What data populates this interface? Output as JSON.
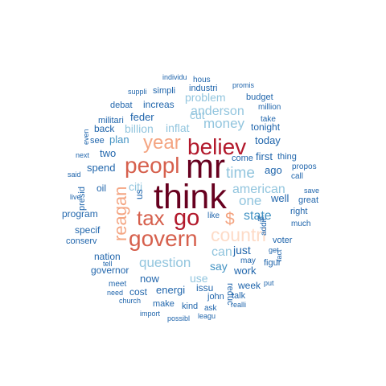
{
  "palette": {
    "darkest_red": "#67001f",
    "dark_red": "#b2182b",
    "red": "#d6604d",
    "salmon": "#f4a582",
    "peach": "#fddbc7",
    "light_blue": "#92c5de",
    "mid_blue": "#4393c3",
    "dark_blue": "#2166ac",
    "background": "#ffffff"
  },
  "words": [
    {
      "text": "think",
      "color": "#67001f"
    },
    {
      "text": "mr",
      "color": "#67001f"
    },
    {
      "text": "believ",
      "color": "#b2182b"
    },
    {
      "text": "peopl",
      "color": "#d6604d"
    },
    {
      "text": "govern",
      "color": "#d6604d"
    },
    {
      "text": "go",
      "color": "#b2182b"
    },
    {
      "text": "tax",
      "color": "#d6604d"
    },
    {
      "text": "year",
      "color": "#f4a582"
    },
    {
      "text": "countri",
      "color": "#fddbc7"
    },
    {
      "text": "reagan",
      "color": "#f4a582"
    },
    {
      "text": "$",
      "color": "#f4a582"
    },
    {
      "text": "time",
      "color": "#92c5de"
    },
    {
      "text": "question",
      "color": "#92c5de"
    },
    {
      "text": "american",
      "color": "#92c5de"
    },
    {
      "text": "one",
      "color": "#92c5de"
    },
    {
      "text": "money",
      "color": "#92c5de"
    },
    {
      "text": "anderson",
      "color": "#92c5de"
    },
    {
      "text": "can",
      "color": "#92c5de"
    },
    {
      "text": "state",
      "color": "#4393c3"
    },
    {
      "text": "problem",
      "color": "#92c5de"
    },
    {
      "text": "inflat",
      "color": "#92c5de"
    },
    {
      "text": "billion",
      "color": "#92c5de"
    },
    {
      "text": "citi",
      "color": "#92c5de"
    },
    {
      "text": "cut",
      "color": "#92c5de"
    },
    {
      "text": "use",
      "color": "#92c5de"
    },
    {
      "text": "say",
      "color": "#4393c3"
    },
    {
      "text": "just",
      "color": "#2166ac"
    },
    {
      "text": "feder",
      "color": "#2166ac"
    },
    {
      "text": "plan",
      "color": "#4393c3"
    },
    {
      "text": "today",
      "color": "#2166ac"
    },
    {
      "text": "first",
      "color": "#2166ac"
    },
    {
      "text": "spend",
      "color": "#2166ac"
    },
    {
      "text": "two",
      "color": "#2166ac"
    },
    {
      "text": "now",
      "color": "#2166ac"
    },
    {
      "text": "well",
      "color": "#2166ac"
    },
    {
      "text": "ago",
      "color": "#2166ac"
    },
    {
      "text": "work",
      "color": "#2166ac"
    },
    {
      "text": "energi",
      "color": "#2166ac"
    },
    {
      "text": "increas",
      "color": "#2166ac"
    },
    {
      "text": "tonight",
      "color": "#2166ac"
    },
    {
      "text": "come",
      "color": "#2166ac"
    },
    {
      "text": "nation",
      "color": "#2166ac"
    },
    {
      "text": "program",
      "color": "#2166ac"
    },
    {
      "text": "specif",
      "color": "#2166ac"
    },
    {
      "text": "governor",
      "color": "#2166ac"
    },
    {
      "text": "oil",
      "color": "#2166ac"
    },
    {
      "text": "back",
      "color": "#2166ac"
    },
    {
      "text": "see",
      "color": "#2166ac"
    },
    {
      "text": "simpli",
      "color": "#2166ac"
    },
    {
      "text": "industri",
      "color": "#2166ac"
    },
    {
      "text": "militari",
      "color": "#2166ac"
    },
    {
      "text": "debat",
      "color": "#2166ac"
    },
    {
      "text": "us",
      "color": "#2166ac"
    },
    {
      "text": "presid",
      "color": "#2166ac"
    },
    {
      "text": "conserv",
      "color": "#2166ac"
    },
    {
      "text": "issu",
      "color": "#2166ac"
    },
    {
      "text": "make",
      "color": "#2166ac"
    },
    {
      "text": "cost",
      "color": "#2166ac"
    },
    {
      "text": "week",
      "color": "#2166ac"
    },
    {
      "text": "kind",
      "color": "#2166ac"
    },
    {
      "text": "figur",
      "color": "#2166ac"
    },
    {
      "text": "reduc",
      "color": "#2166ac"
    },
    {
      "text": "thing",
      "color": "#2166ac"
    },
    {
      "text": "take",
      "color": "#2166ac"
    },
    {
      "text": "budget",
      "color": "#2166ac"
    },
    {
      "text": "million",
      "color": "#2166ac"
    },
    {
      "text": "john",
      "color": "#2166ac"
    },
    {
      "text": "talk",
      "color": "#2166ac"
    },
    {
      "text": "ask",
      "color": "#2166ac"
    },
    {
      "text": "call",
      "color": "#2166ac"
    },
    {
      "text": "great",
      "color": "#2166ac"
    },
    {
      "text": "right",
      "color": "#2166ac"
    },
    {
      "text": "propos",
      "color": "#2166ac"
    },
    {
      "text": "save",
      "color": "#2166ac"
    },
    {
      "text": "much",
      "color": "#2166ac"
    },
    {
      "text": "voter",
      "color": "#2166ac"
    },
    {
      "text": "get",
      "color": "#2166ac"
    },
    {
      "text": "like",
      "color": "#2166ac"
    },
    {
      "text": "tri",
      "color": "#2166ac"
    },
    {
      "text": "addit",
      "color": "#2166ac"
    },
    {
      "text": "may",
      "color": "#2166ac"
    },
    {
      "text": "women",
      "color": "#2166ac"
    },
    {
      "text": "fact",
      "color": "#2166ac"
    },
    {
      "text": "put",
      "color": "#2166ac"
    },
    {
      "text": "realli",
      "color": "#2166ac"
    },
    {
      "text": "leagu",
      "color": "#2166ac"
    },
    {
      "text": "possibl",
      "color": "#2166ac"
    },
    {
      "text": "import",
      "color": "#2166ac"
    },
    {
      "text": "church",
      "color": "#2166ac"
    },
    {
      "text": "meet",
      "color": "#2166ac"
    },
    {
      "text": "need",
      "color": "#2166ac"
    },
    {
      "text": "tell",
      "color": "#2166ac"
    },
    {
      "text": "live",
      "color": "#2166ac"
    },
    {
      "text": "said",
      "color": "#2166ac"
    },
    {
      "text": "next",
      "color": "#2166ac"
    },
    {
      "text": "even",
      "color": "#2166ac"
    },
    {
      "text": "suppli",
      "color": "#2166ac"
    },
    {
      "text": "individu",
      "color": "#2166ac"
    },
    {
      "text": "hous",
      "color": "#2166ac"
    },
    {
      "text": "promis",
      "color": "#2166ac"
    }
  ]
}
